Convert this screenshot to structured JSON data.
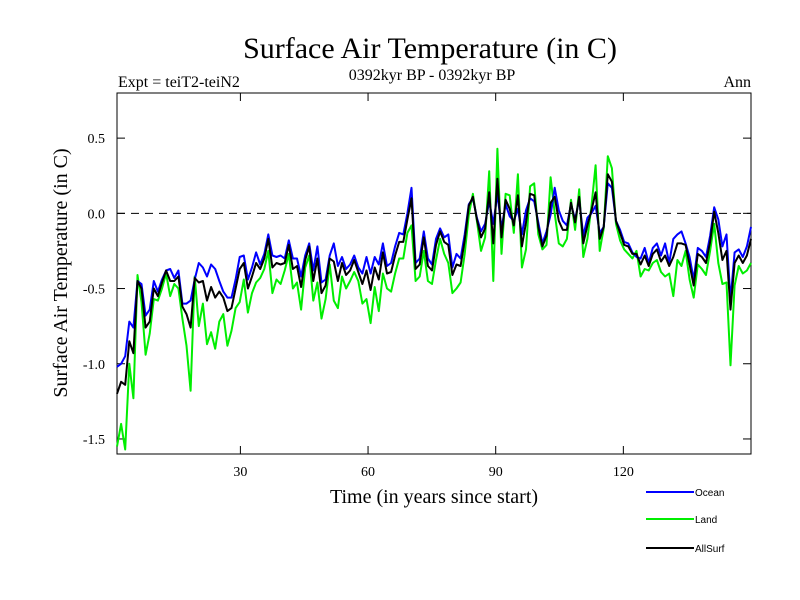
{
  "chart_data": {
    "type": "line",
    "title": "Surface Air Temperature (in C)",
    "subtitle": "0392kyr BP - 0392kyr BP",
    "experiment_label": "Expt = teiT2-teiN2",
    "period_label": "Ann",
    "xlabel": "Time (in years since start)",
    "ylabel": "Surface Air Temperature (in C)",
    "xlim": [
      1,
      150
    ],
    "ylim": [
      -1.6,
      0.8
    ],
    "xticks": [
      30,
      60,
      90,
      120
    ],
    "xtick_labels": [
      "30",
      "60",
      "90",
      "120"
    ],
    "yticks": [
      0.5,
      0.0,
      -0.5,
      -1.0,
      -1.5
    ],
    "ytick_labels": [
      "0.5",
      "0.0",
      "-0.5",
      "-1.0",
      "-1.5"
    ],
    "reference_line": 0.0,
    "legend_position": "bottom-right, below plot",
    "series": [
      {
        "name": "Ocean",
        "color": "#0000ff",
        "values": [
          -1.02,
          -1.0,
          -0.95,
          -0.72,
          -0.76,
          -0.45,
          -0.47,
          -0.68,
          -0.64,
          -0.45,
          -0.52,
          -0.44,
          -0.38,
          -0.37,
          -0.43,
          -0.38,
          -0.6,
          -0.6,
          -0.58,
          -0.44,
          -0.33,
          -0.36,
          -0.42,
          -0.34,
          -0.37,
          -0.45,
          -0.52,
          -0.56,
          -0.56,
          -0.44,
          -0.29,
          -0.28,
          -0.44,
          -0.36,
          -0.26,
          -0.34,
          -0.27,
          -0.14,
          -0.28,
          -0.29,
          -0.28,
          -0.3,
          -0.18,
          -0.3,
          -0.3,
          -0.42,
          -0.28,
          -0.2,
          -0.38,
          -0.22,
          -0.46,
          -0.44,
          -0.28,
          -0.2,
          -0.35,
          -0.29,
          -0.37,
          -0.34,
          -0.28,
          -0.36,
          -0.4,
          -0.29,
          -0.4,
          -0.29,
          -0.34,
          -0.2,
          -0.35,
          -0.33,
          -0.22,
          -0.13,
          -0.14,
          0.0,
          0.17,
          -0.33,
          -0.3,
          -0.12,
          -0.3,
          -0.34,
          -0.17,
          -0.1,
          -0.16,
          -0.14,
          -0.36,
          -0.27,
          -0.3,
          -0.14,
          0.06,
          0.1,
          -0.03,
          -0.12,
          -0.07,
          0.08,
          -0.07,
          0.13,
          -0.1,
          0.06,
          -0.02,
          -0.05,
          0.03,
          -0.14,
          0.02,
          0.1,
          0.08,
          -0.06,
          -0.2,
          -0.12,
          -0.01,
          0.17,
          0.02,
          -0.05,
          -0.08,
          0.06,
          -0.04,
          0.09,
          -0.15,
          -0.03,
          0.0,
          0.05,
          -0.13,
          -0.09,
          0.2,
          0.17,
          -0.05,
          -0.11,
          -0.19,
          -0.2,
          -0.26,
          -0.29,
          -0.3,
          -0.23,
          -0.33,
          -0.23,
          -0.2,
          -0.28,
          -0.2,
          -0.33,
          -0.17,
          -0.14,
          -0.12,
          -0.2,
          -0.29,
          -0.44,
          -0.23,
          -0.25,
          -0.29,
          -0.15,
          0.04,
          -0.04,
          -0.22,
          -0.14,
          -0.58,
          -0.26,
          -0.24,
          -0.29,
          -0.22,
          -0.09
        ]
      },
      {
        "name": "Land",
        "color": "#00ee00",
        "values": [
          -1.55,
          -1.4,
          -1.57,
          -1.0,
          -1.23,
          -0.41,
          -0.59,
          -0.94,
          -0.8,
          -0.57,
          -0.58,
          -0.5,
          -0.4,
          -0.55,
          -0.47,
          -0.5,
          -0.7,
          -0.88,
          -1.18,
          -0.42,
          -0.75,
          -0.6,
          -0.87,
          -0.79,
          -0.9,
          -0.72,
          -0.67,
          -0.88,
          -0.78,
          -0.63,
          -0.59,
          -0.44,
          -0.66,
          -0.53,
          -0.46,
          -0.43,
          -0.37,
          -0.25,
          -0.53,
          -0.44,
          -0.47,
          -0.38,
          -0.27,
          -0.5,
          -0.46,
          -0.64,
          -0.36,
          -0.28,
          -0.58,
          -0.46,
          -0.7,
          -0.57,
          -0.34,
          -0.58,
          -0.63,
          -0.42,
          -0.5,
          -0.45,
          -0.39,
          -0.45,
          -0.6,
          -0.57,
          -0.73,
          -0.49,
          -0.65,
          -0.4,
          -0.5,
          -0.52,
          -0.4,
          -0.3,
          -0.3,
          -0.13,
          -0.08,
          -0.45,
          -0.42,
          -0.25,
          -0.45,
          -0.47,
          -0.31,
          -0.17,
          -0.27,
          -0.33,
          -0.53,
          -0.5,
          -0.46,
          -0.27,
          -0.01,
          0.13,
          -0.05,
          -0.25,
          -0.16,
          0.28,
          -0.45,
          0.43,
          -0.27,
          0.13,
          0.12,
          -0.13,
          0.26,
          -0.36,
          -0.24,
          0.18,
          0.2,
          -0.14,
          -0.24,
          -0.21,
          0.24,
          0.0,
          -0.2,
          -0.22,
          -0.17,
          0.09,
          -0.11,
          0.16,
          -0.29,
          -0.17,
          0.05,
          0.32,
          -0.25,
          -0.1,
          0.38,
          0.3,
          -0.07,
          -0.18,
          -0.24,
          -0.27,
          -0.3,
          -0.25,
          -0.42,
          -0.37,
          -0.38,
          -0.33,
          -0.31,
          -0.39,
          -0.42,
          -0.4,
          -0.55,
          -0.31,
          -0.35,
          -0.25,
          -0.44,
          -0.56,
          -0.34,
          -0.37,
          -0.41,
          -0.25,
          -0.07,
          -0.33,
          -0.47,
          -0.46,
          -1.01,
          -0.48,
          -0.35,
          -0.4,
          -0.38,
          -0.33
        ]
      },
      {
        "name": "AllSurf",
        "color": "#000000",
        "values": [
          -1.2,
          -1.12,
          -1.14,
          -0.85,
          -0.93,
          -0.45,
          -0.5,
          -0.76,
          -0.72,
          -0.5,
          -0.55,
          -0.46,
          -0.38,
          -0.45,
          -0.45,
          -0.42,
          -0.62,
          -0.67,
          -0.76,
          -0.43,
          -0.46,
          -0.45,
          -0.58,
          -0.49,
          -0.56,
          -0.52,
          -0.56,
          -0.65,
          -0.63,
          -0.5,
          -0.37,
          -0.33,
          -0.5,
          -0.42,
          -0.33,
          -0.37,
          -0.3,
          -0.17,
          -0.36,
          -0.33,
          -0.34,
          -0.33,
          -0.21,
          -0.37,
          -0.35,
          -0.49,
          -0.31,
          -0.22,
          -0.45,
          -0.3,
          -0.53,
          -0.48,
          -0.3,
          -0.32,
          -0.45,
          -0.33,
          -0.41,
          -0.38,
          -0.31,
          -0.39,
          -0.47,
          -0.38,
          -0.51,
          -0.36,
          -0.44,
          -0.26,
          -0.4,
          -0.39,
          -0.28,
          -0.19,
          -0.19,
          -0.04,
          0.1,
          -0.37,
          -0.34,
          -0.16,
          -0.35,
          -0.38,
          -0.21,
          -0.12,
          -0.19,
          -0.21,
          -0.41,
          -0.34,
          -0.35,
          -0.18,
          0.05,
          0.11,
          -0.04,
          -0.16,
          -0.1,
          0.14,
          -0.2,
          0.23,
          -0.16,
          0.09,
          0.03,
          -0.08,
          0.12,
          -0.22,
          -0.06,
          0.13,
          0.12,
          -0.09,
          -0.22,
          -0.15,
          0.07,
          0.11,
          -0.05,
          -0.11,
          -0.11,
          0.07,
          -0.06,
          0.11,
          -0.2,
          -0.08,
          0.02,
          0.14,
          -0.17,
          -0.09,
          0.26,
          0.21,
          -0.05,
          -0.13,
          -0.21,
          -0.22,
          -0.27,
          -0.27,
          -0.34,
          -0.28,
          -0.35,
          -0.27,
          -0.24,
          -0.32,
          -0.28,
          -0.35,
          -0.29,
          -0.2,
          -0.2,
          -0.21,
          -0.34,
          -0.48,
          -0.27,
          -0.29,
          -0.33,
          -0.19,
          0.01,
          -0.13,
          -0.31,
          -0.25,
          -0.64,
          -0.33,
          -0.28,
          -0.33,
          -0.28,
          -0.17
        ]
      }
    ]
  }
}
